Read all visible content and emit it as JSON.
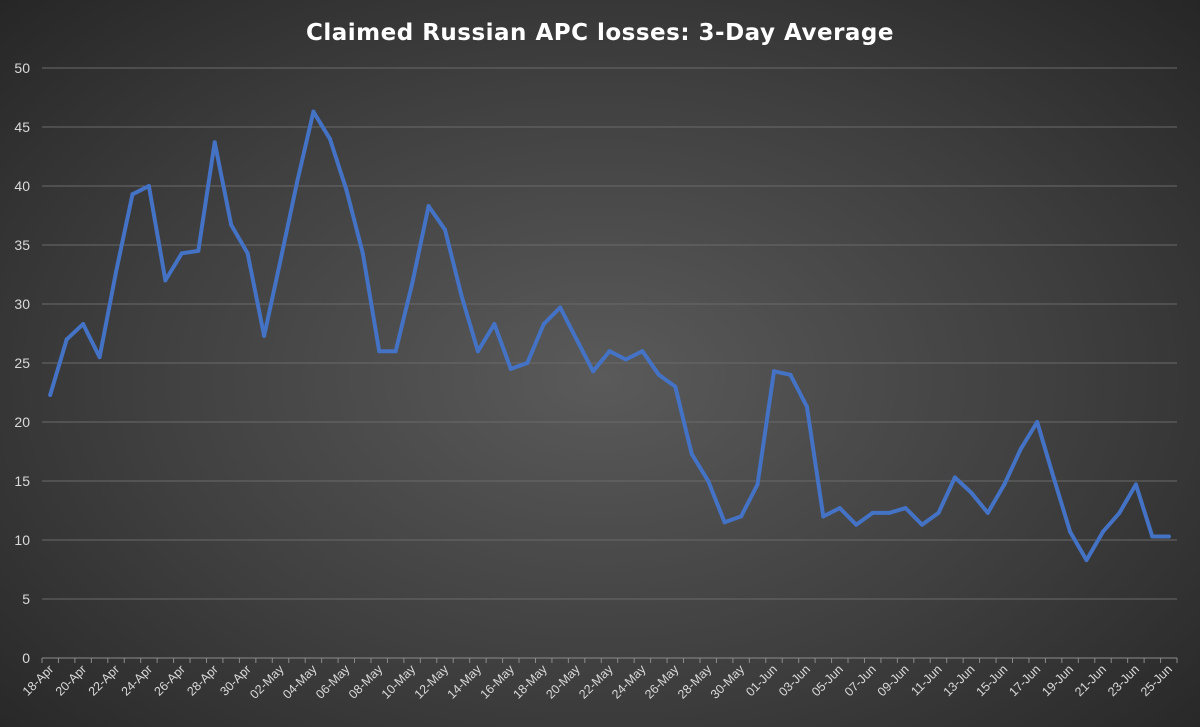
{
  "chart_data": {
    "type": "line",
    "title": "Claimed Russian APC losses: 3-Day Average",
    "xlabel": "",
    "ylabel": "",
    "ylim": [
      0,
      50
    ],
    "yticks": [
      "0",
      "5",
      "10",
      "15",
      "20",
      "25",
      "30",
      "35",
      "40",
      "45",
      "50"
    ],
    "grid": true,
    "legend": "none",
    "color": "#4472c4",
    "x": [
      "18-Apr",
      "19-Apr",
      "20-Apr",
      "21-Apr",
      "22-Apr",
      "23-Apr",
      "24-Apr",
      "25-Apr",
      "26-Apr",
      "27-Apr",
      "28-Apr",
      "29-Apr",
      "30-Apr",
      "01-May",
      "02-May",
      "03-May",
      "04-May",
      "05-May",
      "06-May",
      "07-May",
      "08-May",
      "09-May",
      "10-May",
      "11-May",
      "12-May",
      "13-May",
      "14-May",
      "15-May",
      "16-May",
      "17-May",
      "18-May",
      "19-May",
      "20-May",
      "21-May",
      "22-May",
      "23-May",
      "24-May",
      "25-May",
      "26-May",
      "27-May",
      "28-May",
      "29-May",
      "30-May",
      "31-May",
      "01-Jun",
      "02-Jun",
      "03-Jun",
      "04-Jun",
      "05-Jun",
      "06-Jun",
      "07-Jun",
      "08-Jun",
      "09-Jun",
      "10-Jun",
      "11-Jun",
      "12-Jun",
      "13-Jun",
      "14-Jun",
      "15-Jun",
      "16-Jun",
      "17-Jun",
      "18-Jun",
      "19-Jun",
      "20-Jun",
      "21-Jun",
      "22-Jun",
      "23-Jun",
      "24-Jun",
      "25-Jun"
    ],
    "xtick_labels": [
      "18-Apr",
      "20-Apr",
      "22-Apr",
      "24-Apr",
      "26-Apr",
      "28-Apr",
      "30-Apr",
      "02-May",
      "04-May",
      "06-May",
      "08-May",
      "10-May",
      "12-May",
      "14-May",
      "16-May",
      "18-May",
      "20-May",
      "22-May",
      "24-May",
      "26-May",
      "28-May",
      "30-May",
      "01-Jun",
      "03-Jun",
      "05-Jun",
      "07-Jun",
      "09-Jun",
      "11-Jun",
      "13-Jun",
      "15-Jun",
      "17-Jun",
      "19-Jun",
      "21-Jun",
      "23-Jun",
      "25-Jun"
    ],
    "series": [
      {
        "values": [
          22.3,
          27.0,
          28.3,
          25.5,
          32.7,
          39.3,
          40.0,
          32.0,
          34.3,
          34.5,
          43.7,
          36.7,
          34.3,
          27.3,
          33.7,
          40.3,
          46.3,
          44.0,
          39.7,
          34.3,
          26.0,
          26.0,
          31.7,
          38.3,
          36.3,
          30.7,
          26.0,
          28.3,
          24.5,
          25.0,
          28.3,
          29.7,
          27.0,
          24.3,
          26.0,
          25.3,
          26.0,
          24.0,
          23.0,
          17.3,
          15.0,
          11.5,
          12.0,
          14.7,
          24.3,
          24.0,
          21.3,
          12.0,
          12.7,
          11.3,
          12.3,
          12.3,
          12.7,
          11.3,
          12.3,
          15.3,
          14.0,
          12.3,
          14.7,
          17.7,
          20.0,
          15.3,
          10.7,
          8.3,
          10.7,
          12.3,
          14.7,
          10.3,
          10.3
        ]
      }
    ]
  }
}
